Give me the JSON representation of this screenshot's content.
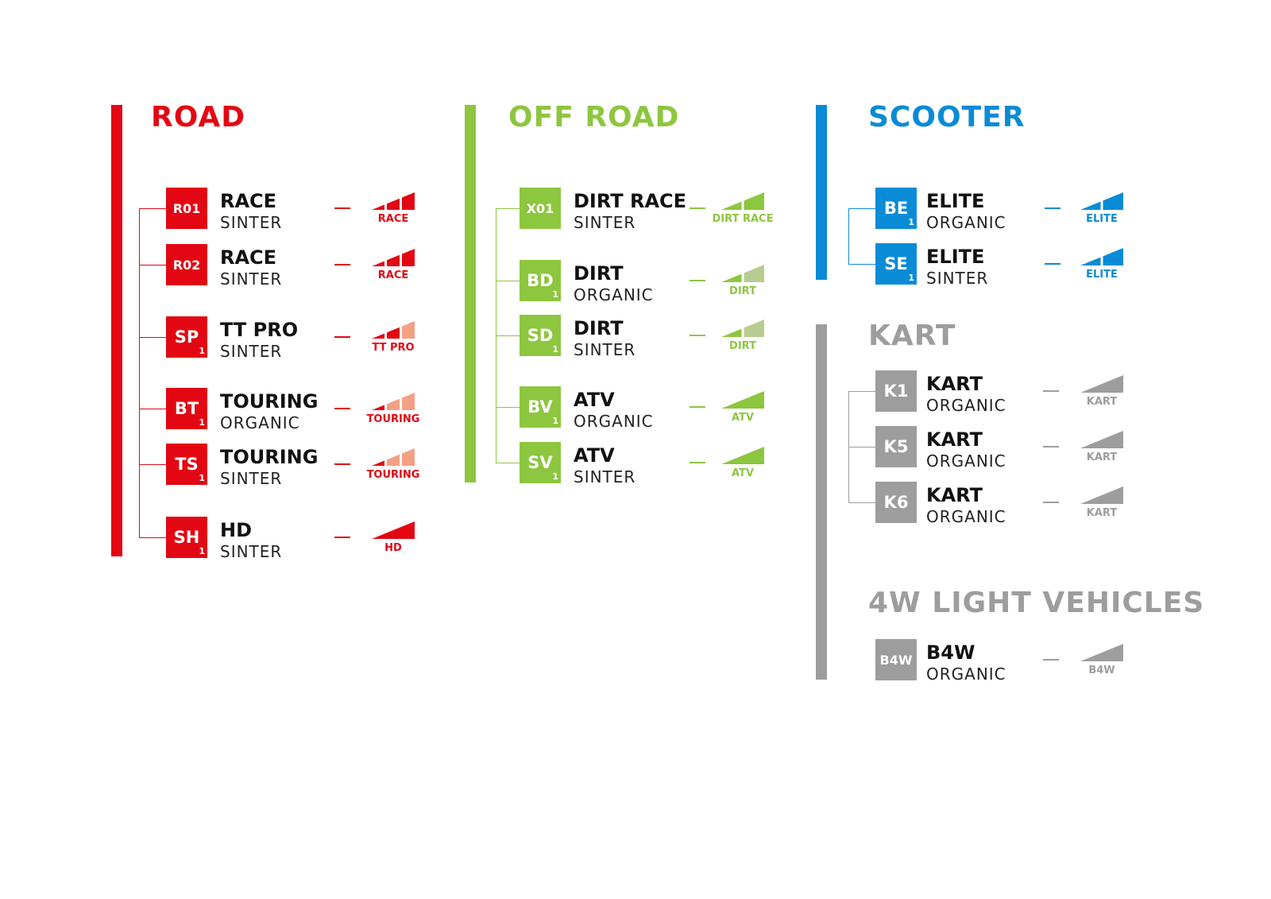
{
  "colors": {
    "road": "#e30613",
    "road_light": "#f3a085",
    "offroad": "#8dc63f",
    "offroad_light": "#b7cc90",
    "scooter": "#0a8bd6",
    "scooter_light": "#8cc6ea",
    "kart": "#9d9d9d",
    "kart_light": "#d0d0d0"
  },
  "groups": [
    {
      "id": "road",
      "title": "ROAD",
      "color_key": "road",
      "items": [
        {
          "code": "R01",
          "sub": "",
          "name": "RACE",
          "material": "SINTER",
          "gauge_label": "RACE",
          "gauge": {
            "segments": 3,
            "filled": 3
          }
        },
        {
          "code": "R02",
          "sub": "",
          "name": "RACE",
          "material": "SINTER",
          "gauge_label": "RACE",
          "gauge": {
            "segments": 3,
            "filled": 3
          }
        },
        {
          "code": "SP",
          "sub": "1",
          "name": "TT PRO",
          "material": "SINTER",
          "gauge_label": "TT PRO",
          "gauge": {
            "segments": 3,
            "filled": 2
          }
        },
        {
          "code": "BT",
          "sub": "1",
          "name": "TOURING",
          "material": "ORGANIC",
          "gauge_label": "TOURING",
          "gauge": {
            "segments": 3,
            "filled": 1
          }
        },
        {
          "code": "TS",
          "sub": "1",
          "name": "TOURING",
          "material": "SINTER",
          "gauge_label": "TOURING",
          "gauge": {
            "segments": 3,
            "filled": 1
          }
        },
        {
          "code": "SH",
          "sub": "1",
          "name": "HD",
          "material": "SINTER",
          "gauge_label": "HD",
          "gauge": {
            "segments": 1,
            "filled": 1
          }
        }
      ]
    },
    {
      "id": "offroad",
      "title": "OFF ROAD",
      "color_key": "offroad",
      "items": [
        {
          "code": "X01",
          "sub": "",
          "name": "DIRT RACE",
          "material": "SINTER",
          "gauge_label": "DIRT RACE",
          "gauge": {
            "segments": 2,
            "filled": 2
          }
        },
        {
          "code": "BD",
          "sub": "1",
          "name": "DIRT",
          "material": "ORGANIC",
          "gauge_label": "DIRT",
          "gauge": {
            "segments": 2,
            "filled": 1
          }
        },
        {
          "code": "SD",
          "sub": "1",
          "name": "DIRT",
          "material": "SINTER",
          "gauge_label": "DIRT",
          "gauge": {
            "segments": 2,
            "filled": 1
          }
        },
        {
          "code": "BV",
          "sub": "1",
          "name": "ATV",
          "material": "ORGANIC",
          "gauge_label": "ATV",
          "gauge": {
            "segments": 1,
            "filled": 1
          }
        },
        {
          "code": "SV",
          "sub": "1",
          "name": "ATV",
          "material": "SINTER",
          "gauge_label": "ATV",
          "gauge": {
            "segments": 1,
            "filled": 1
          }
        }
      ]
    },
    {
      "id": "scooter",
      "title": "SCOOTER",
      "color_key": "scooter",
      "items": [
        {
          "code": "BE",
          "sub": "1",
          "name": "ELITE",
          "material": "ORGANIC",
          "gauge_label": "ELITE",
          "gauge": {
            "segments": 2,
            "filled": 2
          }
        },
        {
          "code": "SE",
          "sub": "1",
          "name": "ELITE",
          "material": "SINTER",
          "gauge_label": "ELITE",
          "gauge": {
            "segments": 2,
            "filled": 2
          }
        }
      ]
    },
    {
      "id": "kart",
      "title": "KART",
      "color_key": "kart",
      "items": [
        {
          "code": "K1",
          "sub": "",
          "name": "KART",
          "material": "ORGANIC",
          "gauge_label": "KART",
          "gauge": {
            "segments": 1,
            "filled": 1
          }
        },
        {
          "code": "K5",
          "sub": "",
          "name": "KART",
          "material": "ORGANIC",
          "gauge_label": "KART",
          "gauge": {
            "segments": 1,
            "filled": 1
          }
        },
        {
          "code": "K6",
          "sub": "",
          "name": "KART",
          "material": "ORGANIC",
          "gauge_label": "KART",
          "gauge": {
            "segments": 1,
            "filled": 1
          }
        }
      ]
    },
    {
      "id": "4w",
      "title": "4W LIGHT VEHICLES",
      "color_key": "kart",
      "items": [
        {
          "code": "B4W",
          "sub": "",
          "name": "B4W",
          "material": "ORGANIC",
          "gauge_label": "B4W",
          "gauge": {
            "segments": 1,
            "filled": 1
          }
        }
      ]
    }
  ]
}
